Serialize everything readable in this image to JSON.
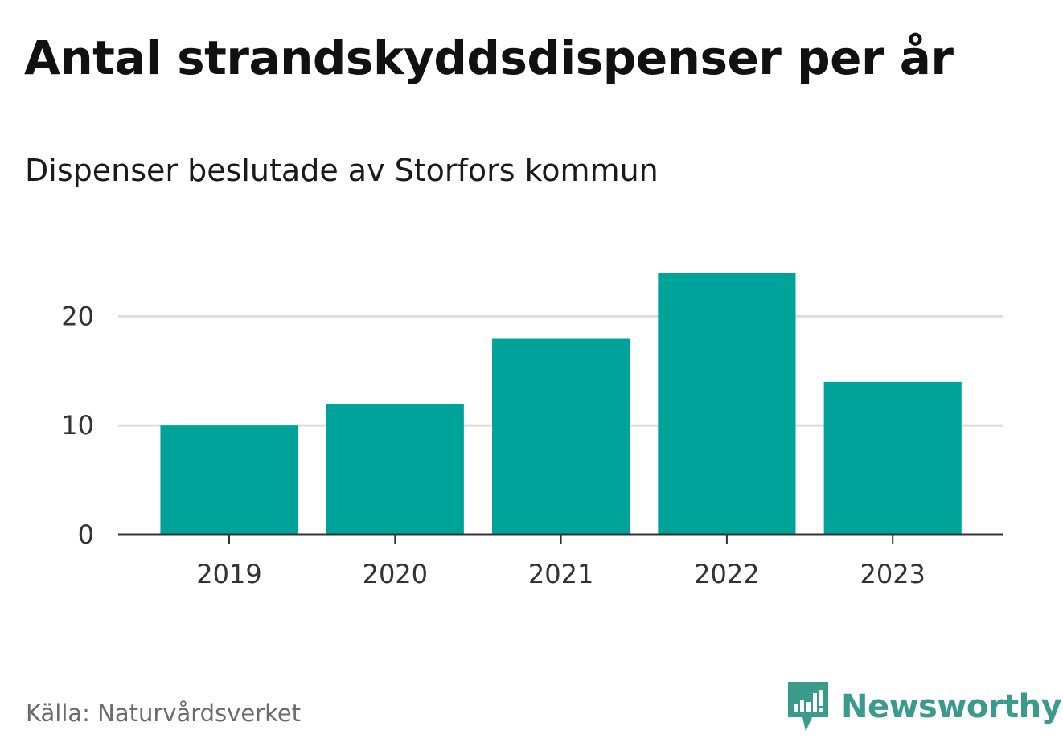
{
  "header": {
    "title": "Antal strandskyddsdispenser per år",
    "subtitle": "Dispenser beslutade av Storfors kommun"
  },
  "footer": {
    "source": "Källa: Naturvårdsverket",
    "brand": "Newsworthy",
    "brand_icon": "newsworthy-logo-icon"
  },
  "colors": {
    "bar": "#00a39a",
    "grid": "#dddddd",
    "axis": "#333333",
    "brand": "#3a9a8c"
  },
  "chart_data": {
    "type": "bar",
    "title": "Antal strandskyddsdispenser per år",
    "subtitle": "Dispenser beslutade av Storfors kommun",
    "xlabel": "",
    "ylabel": "",
    "categories": [
      "2019",
      "2020",
      "2021",
      "2022",
      "2023"
    ],
    "values": [
      10,
      12,
      18,
      24,
      14
    ],
    "ylim": [
      0,
      24
    ],
    "yticks": [
      0,
      10,
      20
    ],
    "grid": true,
    "legend": false
  }
}
